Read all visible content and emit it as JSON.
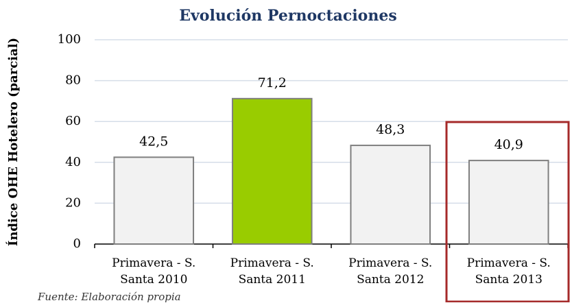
{
  "chart_data": {
    "type": "bar",
    "title": "Evolución Pernoctaciones",
    "y_label": "Índice OHE Hotelero (parcial)",
    "categories": [
      "Primavera - S. Santa 2010",
      "Primavera - S. Santa 2011",
      "Primavera - S. Santa 2012",
      "Primavera - S. Santa 2013"
    ],
    "values": [
      42.5,
      71.2,
      48.3,
      40.9
    ],
    "value_labels": [
      "42,5",
      "71,2",
      "48,3",
      "40,9"
    ],
    "colors": [
      "#f2f2f2",
      "#99cc00",
      "#f2f2f2",
      "#f2f2f2"
    ],
    "ylim": [
      0,
      100
    ],
    "yticks": [
      0,
      20,
      40,
      60,
      80,
      100
    ],
    "grid": true,
    "source": "Fuente: Elaboración propia"
  }
}
